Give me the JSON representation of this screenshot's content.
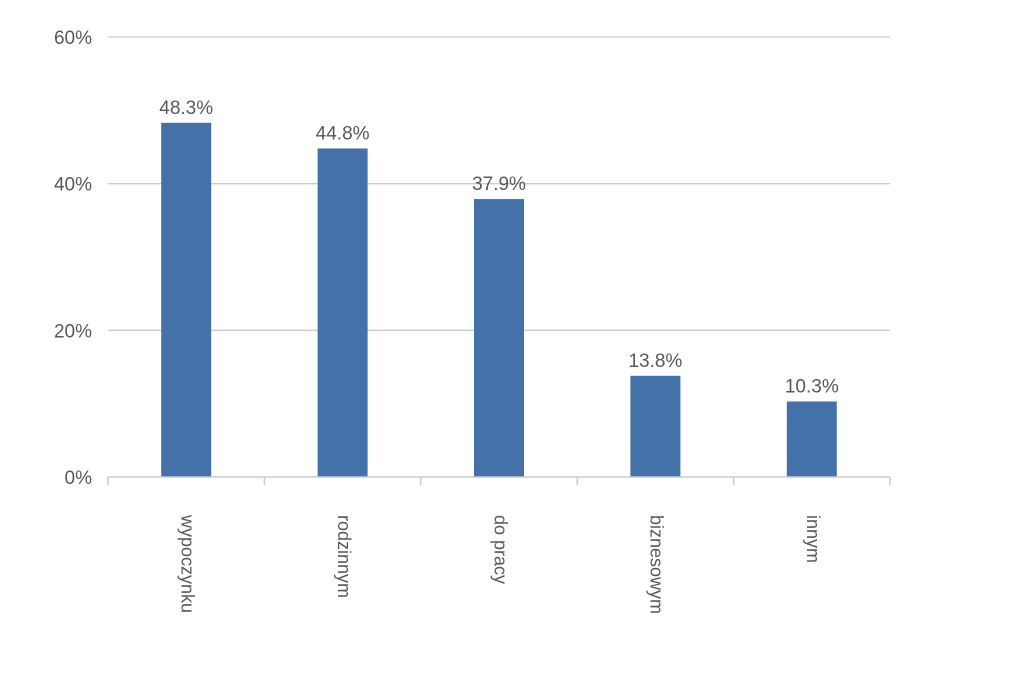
{
  "chart_data": {
    "type": "bar",
    "categories": [
      "wypoczynku",
      "rodzinnym",
      "do pracy",
      "biznesowym",
      "innym"
    ],
    "values": [
      48.3,
      44.8,
      37.9,
      13.8,
      10.3
    ],
    "value_labels": [
      "48.3%",
      "44.8%",
      "37.9%",
      "13.8%",
      "10.3%"
    ],
    "y_ticks": [
      0,
      20,
      40,
      60
    ],
    "y_tick_labels": [
      "0%",
      "20%",
      "40%",
      "60%"
    ],
    "ylim": [
      0,
      60
    ],
    "grid": true,
    "bar_color": "#4472a8",
    "grid_color": "#c8ccd6",
    "axis_color": "#c8ccd6",
    "text_color": "#595959"
  }
}
